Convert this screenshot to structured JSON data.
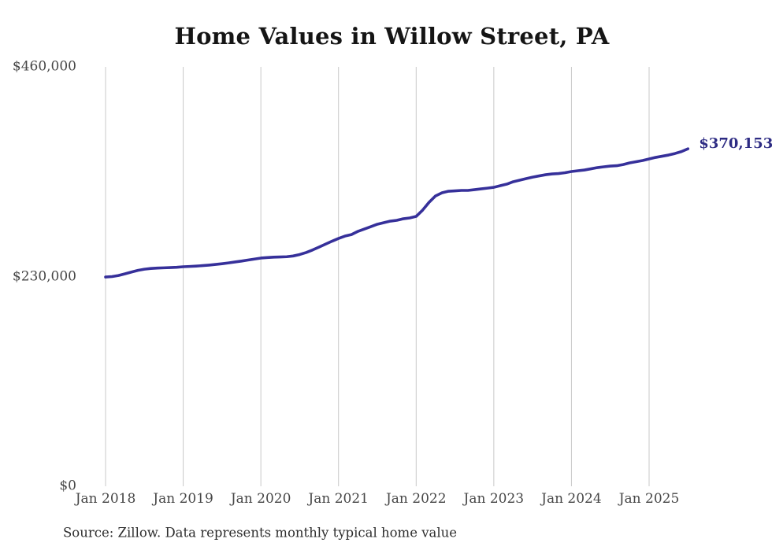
{
  "chart": {
    "title": "Home Values in Willow Street, PA",
    "end_label": "$370,153",
    "source": "Source: Zillow. Data represents monthly typical home value",
    "colors": {
      "line": "#36309a",
      "end_label": "#2d2b83",
      "grid": "#c9c9c9",
      "tick_text": "#474747",
      "title_text": "#151515"
    }
  },
  "chart_data": {
    "type": "line",
    "title": "Home Values in Willow Street, PA",
    "series_name": "Typical home value (USD)",
    "x_start": "Jan 2018",
    "x_end": "Jul 2025",
    "x_interval": "month",
    "values": [
      229500,
      230000,
      231200,
      233000,
      235000,
      236800,
      238100,
      238900,
      239300,
      239600,
      239900,
      240200,
      240800,
      241100,
      241500,
      242000,
      242600,
      243300,
      244100,
      245000,
      246000,
      247000,
      248100,
      249200,
      250300,
      250900,
      251300,
      251500,
      251800,
      252600,
      254200,
      256400,
      259200,
      262400,
      265600,
      268800,
      271800,
      274400,
      276100,
      279600,
      282200,
      284800,
      287400,
      289100,
      290800,
      291700,
      293400,
      294300,
      296000,
      302900,
      311500,
      318500,
      321900,
      323600,
      324000,
      324500,
      324500,
      325300,
      326200,
      327000,
      327900,
      329700,
      331400,
      334000,
      335700,
      337400,
      339100,
      340400,
      341700,
      342600,
      343000,
      343900,
      345200,
      346100,
      346900,
      348200,
      349500,
      350400,
      351200,
      351600,
      352900,
      354700,
      356000,
      357300,
      359000,
      360700,
      362000,
      363300,
      365000,
      367100,
      370153
    ],
    "latest_value": 370153,
    "latest_label": "$370,153",
    "ylim": [
      0,
      460000
    ],
    "yticks": [
      {
        "label": "$0",
        "value": 0
      },
      {
        "label": "$230,000",
        "value": 230000
      },
      {
        "label": "$460,000",
        "value": 460000
      }
    ],
    "xticks": [
      {
        "label": "Jan 2018",
        "month_index": 0
      },
      {
        "label": "Jan 2019",
        "month_index": 12
      },
      {
        "label": "Jan 2020",
        "month_index": 24
      },
      {
        "label": "Jan 2021",
        "month_index": 36
      },
      {
        "label": "Jan 2022",
        "month_index": 48
      },
      {
        "label": "Jan 2023",
        "month_index": 60
      },
      {
        "label": "Jan 2024",
        "month_index": 72
      },
      {
        "label": "Jan 2025",
        "month_index": 84
      }
    ],
    "grid": "vertical-year-lines",
    "legend": "none",
    "source": "Source: Zillow. Data represents monthly typical home value"
  }
}
